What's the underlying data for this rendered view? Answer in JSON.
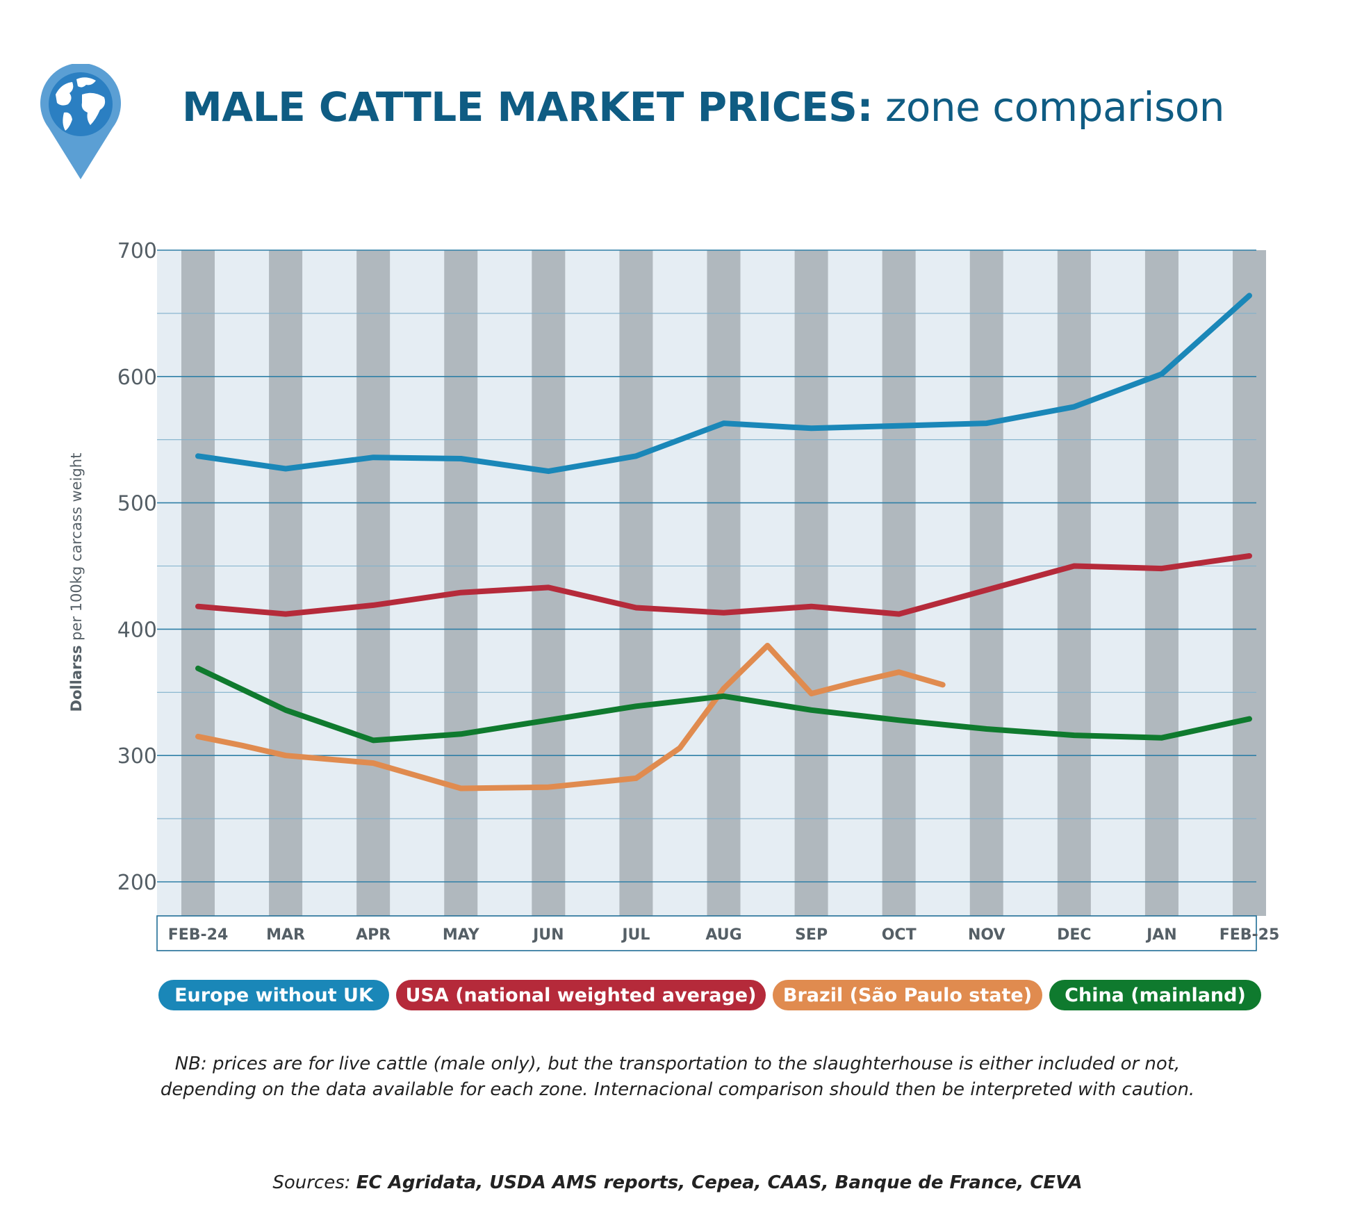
{
  "header": {
    "title_bold": "MALE CATTLE MARKET PRICES:",
    "title_rest": " zone comparison"
  },
  "colors": {
    "europe": "#1a87b8",
    "usa": "#b52a3a",
    "brazil": "#e08b4f",
    "china": "#0f7a2e",
    "title": "#0f5c83",
    "stripe_dark": "#b0b8be",
    "stripe_light": "#e5edf3"
  },
  "chart_data": {
    "type": "line",
    "title": "MALE CATTLE MARKET PRICES: zone comparison",
    "ylabel_bold": "Dollarss",
    "ylabel_rest": " per 100kg carcass weight",
    "ylim": [
      180,
      700
    ],
    "yticks": [
      200,
      300,
      400,
      500,
      600,
      700
    ],
    "month_labels": [
      "FEB-24",
      "MAR",
      "APR",
      "MAY",
      "JUN",
      "JUL",
      "AUG",
      "SEP",
      "OCT",
      "NOV",
      "DEC",
      "JAN",
      "FEB-25"
    ],
    "grid": true,
    "legend_position": "bottom",
    "series": [
      {
        "name": "Europe without UK",
        "color": "#1a87b8",
        "points": [
          [
            0,
            537
          ],
          [
            1,
            527
          ],
          [
            2,
            536
          ],
          [
            3,
            535
          ],
          [
            4,
            525
          ],
          [
            5,
            537
          ],
          [
            6,
            563
          ],
          [
            7,
            559
          ],
          [
            8,
            561
          ],
          [
            9,
            563
          ],
          [
            10,
            576
          ],
          [
            11,
            602
          ],
          [
            12,
            664
          ]
        ]
      },
      {
        "name": "USA (national weighted average)",
        "color": "#b52a3a",
        "points": [
          [
            0,
            418
          ],
          [
            1,
            412
          ],
          [
            2,
            419
          ],
          [
            3,
            429
          ],
          [
            4,
            433
          ],
          [
            5,
            417
          ],
          [
            6,
            413
          ],
          [
            7,
            418
          ],
          [
            8,
            412
          ],
          [
            9,
            431
          ],
          [
            10,
            450
          ],
          [
            11,
            448
          ],
          [
            12,
            458
          ]
        ]
      },
      {
        "name": "Brazil (São Paulo state)",
        "color": "#e08b4f",
        "points": [
          [
            0,
            315
          ],
          [
            0.5,
            308
          ],
          [
            1,
            300
          ],
          [
            2,
            294
          ],
          [
            3,
            274
          ],
          [
            4,
            275
          ],
          [
            5,
            282
          ],
          [
            5.5,
            306
          ],
          [
            6,
            353
          ],
          [
            6.5,
            387
          ],
          [
            7,
            349
          ],
          [
            7.5,
            358
          ],
          [
            8,
            366
          ],
          [
            8.5,
            356
          ]
        ]
      },
      {
        "name": "China (mainland)",
        "color": "#0f7a2e",
        "points": [
          [
            0,
            369
          ],
          [
            1,
            336
          ],
          [
            2,
            312
          ],
          [
            3,
            317
          ],
          [
            4,
            328
          ],
          [
            5,
            339
          ],
          [
            6,
            347
          ],
          [
            7,
            336
          ],
          [
            8,
            328
          ],
          [
            9,
            321
          ],
          [
            10,
            316
          ],
          [
            11,
            314
          ],
          [
            12,
            329
          ]
        ]
      }
    ]
  },
  "note": {
    "line1": "NB: prices are for live cattle (male only), but the transportation to the slaughterhouse is either included or not,",
    "line2": "depending on the data available for each zone. Internacional comparison should then be interpreted with caution."
  },
  "sources": {
    "label": "Sources: ",
    "list": "EC Agridata, USDA AMS reports, Cepea, CAAS, Banque de France, CEVA"
  }
}
